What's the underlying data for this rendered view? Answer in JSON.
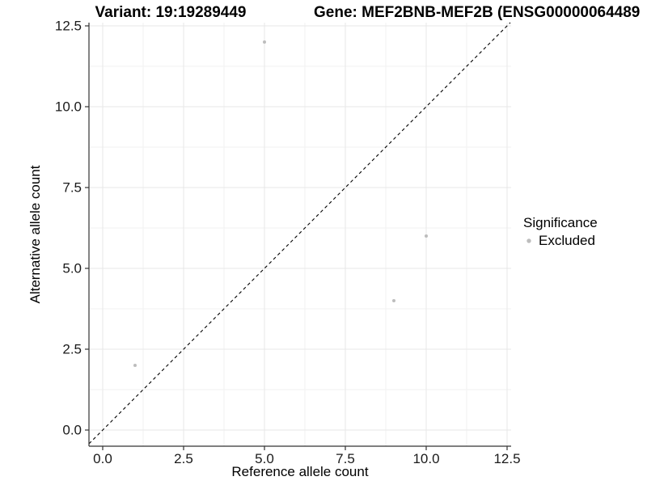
{
  "titles": {
    "left": "Variant: 19:19289449",
    "right": "Gene: MEF2BNB-MEF2B (ENSG00000064489"
  },
  "legend": {
    "title": "Significance",
    "entries": [
      {
        "label": "Excluded",
        "color": "#bdbdbd"
      }
    ]
  },
  "chart_data": {
    "type": "scatter",
    "title_left": "Variant: 19:19289449",
    "title_right": "Gene: MEF2BNB-MEF2B (ENSG00000064489",
    "xlabel": "Reference allele count",
    "ylabel": "Alternative allele count",
    "xlim": [
      -0.425,
      12.625
    ],
    "ylim": [
      -0.5,
      12.6
    ],
    "x_ticks": {
      "values": [
        0,
        2.5,
        5,
        7.5,
        10,
        12.5
      ],
      "labels": [
        "0.0",
        "2.5",
        "5.0",
        "7.5",
        "10.0",
        "12.5"
      ]
    },
    "y_ticks": {
      "values": [
        0,
        2.5,
        5,
        7.5,
        10,
        12.5
      ],
      "labels": [
        "0.0",
        "2.5",
        "5.0",
        "7.5",
        "10.0",
        "12.5"
      ]
    },
    "grid": true,
    "series": [
      {
        "name": "Excluded",
        "color": "#bdbdbd",
        "points": [
          [
            5,
            12
          ],
          [
            1,
            2
          ],
          [
            9,
            4
          ],
          [
            10,
            6
          ]
        ]
      }
    ],
    "reference_line": {
      "slope": 1,
      "intercept": 0,
      "style": "dashed",
      "color": "#000000"
    },
    "legend_position": "right",
    "colors": {
      "axis": "#333333",
      "grid_major": "#e7e7e7",
      "grid_minor": "#f2f2f2",
      "tick_text": "#1a1a1a"
    }
  }
}
